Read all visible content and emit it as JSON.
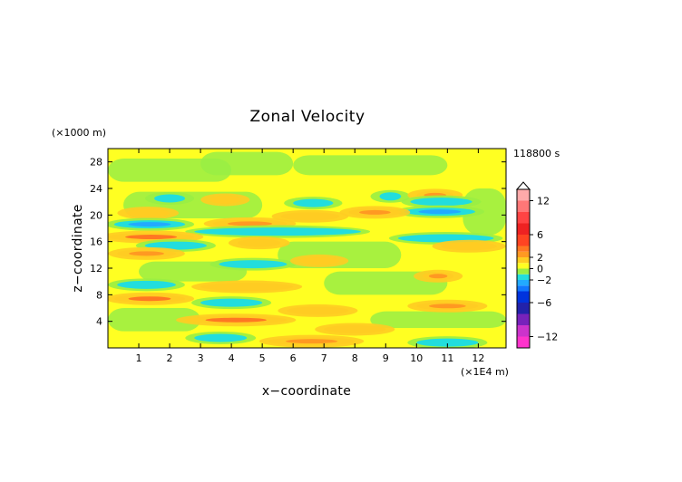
{
  "chart_data": {
    "type": "heatmap",
    "title": "Zonal Velocity",
    "xlabel": "x−coordinate",
    "ylabel": "z−coordinate",
    "x_unit": "(×1E4 m)",
    "y_unit": "(×1000 m)",
    "time_label": "118800 s",
    "xlim": [
      0,
      12.9
    ],
    "ylim": [
      0,
      30
    ],
    "x_ticks": [
      1,
      2,
      3,
      4,
      5,
      6,
      7,
      8,
      9,
      10,
      11,
      12
    ],
    "y_ticks": [
      4,
      8,
      12,
      16,
      20,
      24,
      28
    ],
    "colorbar": {
      "range": [
        -14,
        14
      ],
      "labels": [
        12,
        6,
        2,
        0,
        -2,
        -6,
        -12
      ],
      "label_text": [
        "12",
        "6",
        "2",
        "0",
        "−2",
        "−6",
        "−12"
      ],
      "colors": [
        {
          "min": -14,
          "max": -12,
          "color": "#ff33cc"
        },
        {
          "min": -12,
          "max": -10,
          "color": "#cc33cc"
        },
        {
          "min": -10,
          "max": -8,
          "color": "#7722bb"
        },
        {
          "min": -8,
          "max": -6,
          "color": "#2222aa"
        },
        {
          "min": -6,
          "max": -4,
          "color": "#0033dd"
        },
        {
          "min": -4,
          "max": -3,
          "color": "#1177ff"
        },
        {
          "min": -3,
          "max": -2,
          "color": "#22aaff"
        },
        {
          "min": -2,
          "max": -1,
          "color": "#22dddd"
        },
        {
          "min": -1,
          "max": 0,
          "color": "#99ee44"
        },
        {
          "min": 0,
          "max": 1,
          "color": "#ffff22"
        },
        {
          "min": 1,
          "max": 2,
          "color": "#ffcc22"
        },
        {
          "min": 2,
          "max": 3,
          "color": "#ff9922"
        },
        {
          "min": 3,
          "max": 4,
          "color": "#ff7722"
        },
        {
          "min": 4,
          "max": 6,
          "color": "#ff4422"
        },
        {
          "min": 6,
          "max": 8,
          "color": "#ee2222"
        },
        {
          "min": 8,
          "max": 10,
          "color": "#ff4444"
        },
        {
          "min": 10,
          "max": 12,
          "color": "#ff7777"
        },
        {
          "min": 12,
          "max": 14,
          "color": "#ffaaaa"
        }
      ]
    },
    "bands": [
      {
        "z": 22.5,
        "x0": 1.5,
        "x1": 2.5,
        "v": -2
      },
      {
        "z": 22.3,
        "x0": 3.3,
        "x1": 4.3,
        "v": 2
      },
      {
        "z": 21.8,
        "x0": 6.0,
        "x1": 7.3,
        "v": -2
      },
      {
        "z": 22.8,
        "x0": 8.8,
        "x1": 9.5,
        "v": -2
      },
      {
        "z": 23.0,
        "x0": 10.0,
        "x1": 11.2,
        "v": 3
      },
      {
        "z": 22.0,
        "x0": 9.8,
        "x1": 11.8,
        "v": -2
      },
      {
        "z": 20.5,
        "x0": 9.6,
        "x1": 11.9,
        "v": -3
      },
      {
        "z": 20.4,
        "x0": 7.8,
        "x1": 9.5,
        "v": 3
      },
      {
        "z": 19.8,
        "x0": 5.6,
        "x1": 7.5,
        "v": 2
      },
      {
        "z": 20.3,
        "x0": 0.6,
        "x1": 2.0,
        "v": 2
      },
      {
        "z": 18.6,
        "x0": 0.2,
        "x1": 2.5,
        "v": -3
      },
      {
        "z": 18.7,
        "x0": 3.4,
        "x1": 5.8,
        "v": 3
      },
      {
        "z": 17.5,
        "x0": 2.8,
        "x1": 8.2,
        "v": -2
      },
      {
        "z": 16.7,
        "x0": 0.0,
        "x1": 2.8,
        "v": 4
      },
      {
        "z": 15.4,
        "x0": 1.2,
        "x1": 3.2,
        "v": -2
      },
      {
        "z": 15.8,
        "x0": 4.2,
        "x1": 5.6,
        "v": 2
      },
      {
        "z": 16.5,
        "x0": 9.4,
        "x1": 12.5,
        "v": -2
      },
      {
        "z": 15.3,
        "x0": 10.8,
        "x1": 12.6,
        "v": 2
      },
      {
        "z": 14.2,
        "x0": 0.3,
        "x1": 2.2,
        "v": 3
      },
      {
        "z": 12.6,
        "x0": 3.6,
        "x1": 5.8,
        "v": -2
      },
      {
        "z": 13.1,
        "x0": 6.2,
        "x1": 7.5,
        "v": 2
      },
      {
        "z": 10.8,
        "x0": 10.2,
        "x1": 11.2,
        "v": 3
      },
      {
        "z": 9.5,
        "x0": 0.3,
        "x1": 2.2,
        "v": -2
      },
      {
        "z": 9.2,
        "x0": 3.0,
        "x1": 6.0,
        "v": 2
      },
      {
        "z": 7.4,
        "x0": 0.2,
        "x1": 2.5,
        "v": 4
      },
      {
        "z": 6.8,
        "x0": 3.0,
        "x1": 5.0,
        "v": -2
      },
      {
        "z": 6.3,
        "x0": 10.0,
        "x1": 12.0,
        "v": 3
      },
      {
        "z": 5.6,
        "x0": 5.8,
        "x1": 7.8,
        "v": 2
      },
      {
        "z": 4.2,
        "x0": 2.5,
        "x1": 5.8,
        "v": 4
      },
      {
        "z": 2.8,
        "x0": 7.0,
        "x1": 9.0,
        "v": 2
      },
      {
        "z": 1.5,
        "x0": 2.8,
        "x1": 4.5,
        "v": -2
      },
      {
        "z": 1.0,
        "x0": 5.2,
        "x1": 8.0,
        "v": 3
      },
      {
        "z": 0.8,
        "x0": 10.0,
        "x1": 12.0,
        "v": -2
      }
    ]
  }
}
